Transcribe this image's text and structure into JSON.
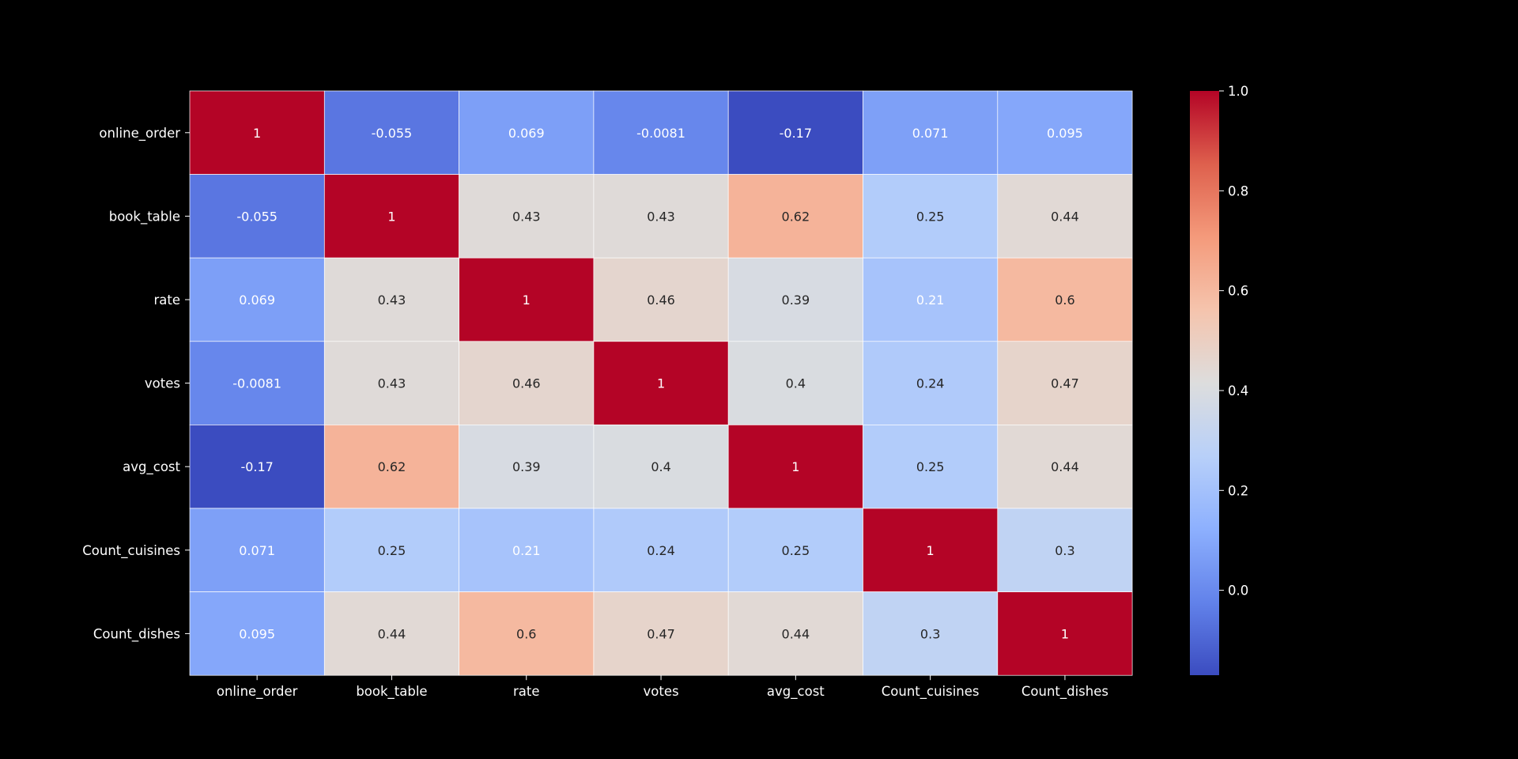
{
  "chart_data": {
    "type": "heatmap",
    "title": "",
    "xlabel": "",
    "ylabel": "",
    "row_labels": [
      "online_order",
      "book_table",
      "rate",
      "votes",
      "avg_cost",
      "Count_cuisines",
      "Count_dishes"
    ],
    "col_labels": [
      "online_order",
      "book_table",
      "rate",
      "votes",
      "avg_cost",
      "Count_cuisines",
      "Count_dishes"
    ],
    "values": [
      [
        1,
        -0.055,
        0.069,
        -0.0081,
        -0.17,
        0.071,
        0.095
      ],
      [
        -0.055,
        1,
        0.43,
        0.43,
        0.62,
        0.25,
        0.44
      ],
      [
        0.069,
        0.43,
        1,
        0.46,
        0.39,
        0.21,
        0.6
      ],
      [
        -0.0081,
        0.43,
        0.46,
        1,
        0.4,
        0.24,
        0.47
      ],
      [
        -0.17,
        0.62,
        0.39,
        0.4,
        1,
        0.25,
        0.44
      ],
      [
        0.071,
        0.25,
        0.21,
        0.24,
        0.25,
        1,
        0.3
      ],
      [
        0.095,
        0.44,
        0.6,
        0.47,
        0.44,
        0.3,
        1
      ]
    ],
    "cell_labels": [
      [
        "1",
        "-0.055",
        "0.069",
        "-0.0081",
        "-0.17",
        "0.071",
        "0.095"
      ],
      [
        "-0.055",
        "1",
        "0.43",
        "0.43",
        "0.62",
        "0.25",
        "0.44"
      ],
      [
        "0.069",
        "0.43",
        "1",
        "0.46",
        "0.39",
        "0.21",
        "0.6"
      ],
      [
        "-0.0081",
        "0.43",
        "0.46",
        "1",
        "0.4",
        "0.24",
        "0.47"
      ],
      [
        "-0.17",
        "0.62",
        "0.39",
        "0.4",
        "1",
        "0.25",
        "0.44"
      ],
      [
        "0.071",
        "0.25",
        "0.21",
        "0.24",
        "0.25",
        "1",
        "0.3"
      ],
      [
        "0.095",
        "0.44",
        "0.6",
        "0.47",
        "0.44",
        "0.3",
        "1"
      ]
    ],
    "colormap": "coolwarm",
    "vmin": -0.17,
    "vmax": 1,
    "colorbar": {
      "ticks": [
        0.0,
        0.2,
        0.4,
        0.6,
        0.8,
        1.0
      ],
      "tick_labels": [
        "0.0",
        "0.2",
        "0.4",
        "0.6",
        "0.8",
        "1.0"
      ],
      "placement": "right"
    },
    "grid_line_color": "#ffffff",
    "background_color": "#000000"
  }
}
